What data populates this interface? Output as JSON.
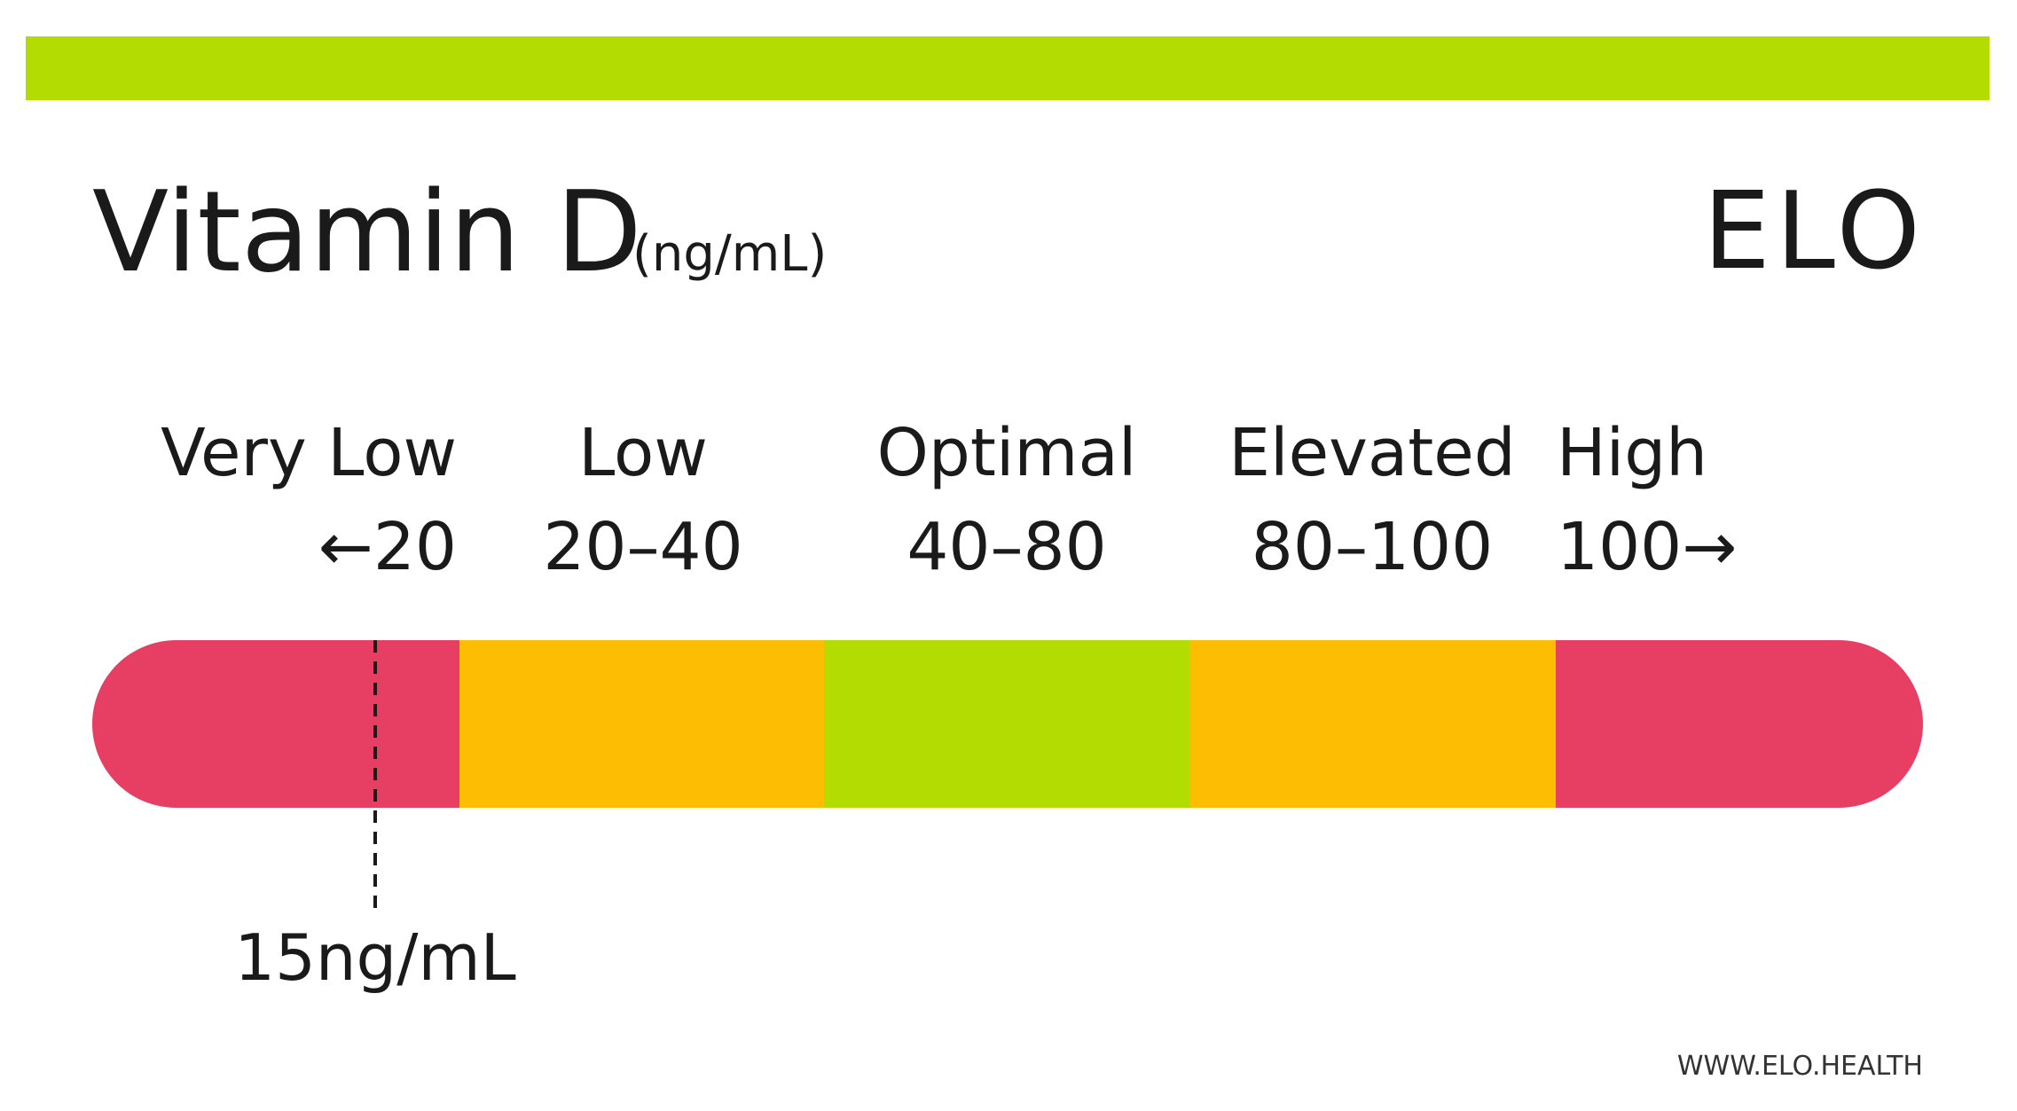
{
  "header": {
    "title": "Vitamin D",
    "unit": "(ng/mL)",
    "logo": "ELO"
  },
  "ranges": [
    {
      "label": "Very Low",
      "range": "←20"
    },
    {
      "label": "Low",
      "range": "20–40"
    },
    {
      "label": "Optimal",
      "range": "40–80"
    },
    {
      "label": "Elevated",
      "range": "80–100"
    },
    {
      "label": "High",
      "range": "100→"
    }
  ],
  "marker": {
    "label": "15ng/mL"
  },
  "footer": {
    "url": "WWW.ELO.HEALTH"
  }
}
